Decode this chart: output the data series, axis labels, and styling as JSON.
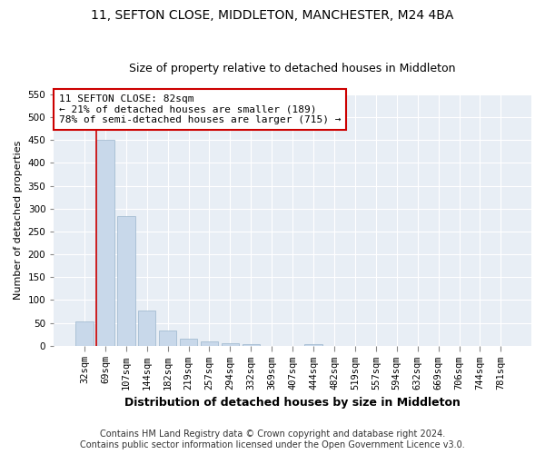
{
  "title1": "11, SEFTON CLOSE, MIDDLETON, MANCHESTER, M24 4BA",
  "title2": "Size of property relative to detached houses in Middleton",
  "xlabel": "Distribution of detached houses by size in Middleton",
  "ylabel": "Number of detached properties",
  "categories": [
    "32sqm",
    "69sqm",
    "107sqm",
    "144sqm",
    "182sqm",
    "219sqm",
    "257sqm",
    "294sqm",
    "332sqm",
    "369sqm",
    "407sqm",
    "444sqm",
    "482sqm",
    "519sqm",
    "557sqm",
    "594sqm",
    "632sqm",
    "669sqm",
    "706sqm",
    "744sqm",
    "781sqm"
  ],
  "values": [
    53,
    451,
    283,
    78,
    33,
    15,
    9,
    5,
    3,
    0,
    0,
    4,
    0,
    0,
    0,
    0,
    0,
    0,
    0,
    0,
    0
  ],
  "bar_color": "#c8d8ea",
  "bar_edge_color": "#9ab5cc",
  "annotation_text": "11 SEFTON CLOSE: 82sqm\n← 21% of detached houses are smaller (189)\n78% of semi-detached houses are larger (715) →",
  "annotation_box_color": "#ffffff",
  "annotation_box_edge_color": "#cc0000",
  "ylim": [
    0,
    550
  ],
  "yticks": [
    0,
    50,
    100,
    150,
    200,
    250,
    300,
    350,
    400,
    450,
    500,
    550
  ],
  "footer_line1": "Contains HM Land Registry data © Crown copyright and database right 2024.",
  "footer_line2": "Contains public sector information licensed under the Open Government Licence v3.0.",
  "bg_color": "#ffffff",
  "plot_bg_color": "#e8eef5",
  "title1_fontsize": 10,
  "title2_fontsize": 9,
  "xlabel_fontsize": 9,
  "ylabel_fontsize": 8,
  "tick_fontsize": 7.5,
  "annotation_fontsize": 8,
  "footer_fontsize": 7,
  "grid_color": "#ffffff"
}
